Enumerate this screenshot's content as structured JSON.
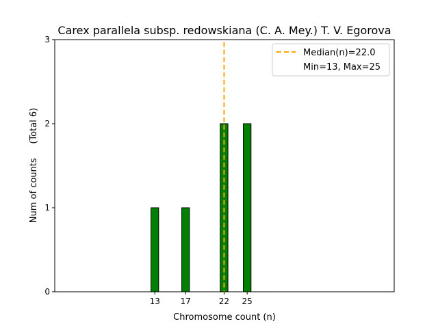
{
  "chart_data": {
    "type": "bar",
    "title": "Carex parallela subsp. redowskiana (C. A. Mey.) T. V. Egorova",
    "xlabel": "Chromosome count (n)",
    "ylabel": "Num of counts     (Total 6)",
    "x": [
      13,
      14,
      15,
      16,
      17,
      18,
      19,
      20,
      21,
      22,
      23,
      24,
      25,
      26,
      27,
      28
    ],
    "values": [
      1,
      0,
      0,
      0,
      1,
      0,
      0,
      0,
      0,
      2,
      0,
      0,
      2,
      0,
      0,
      0
    ],
    "xticks": [
      "13",
      "17",
      "22",
      "25"
    ],
    "xtick_values": [
      13,
      17,
      22,
      25
    ],
    "yticks": [
      "0",
      "1",
      "2",
      "3"
    ],
    "xlim": [
      0,
      44.1
    ],
    "ylim": [
      0,
      3
    ],
    "bar_color": "#008000",
    "median": 22.0,
    "median_color": "#FFA500",
    "legend": {
      "placement": "top-right",
      "entries": [
        "Median(n)=22.0",
        "Min=13, Max=25"
      ]
    }
  }
}
